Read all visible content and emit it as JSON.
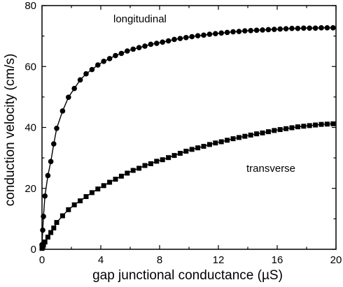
{
  "chart_data": {
    "type": "line",
    "title": "",
    "xlabel": "gap junctional conductance (µS)",
    "ylabel": "conduction velocity (cm/s)",
    "xlim": [
      0,
      20
    ],
    "ylim": [
      0,
      80
    ],
    "xticks": [
      "0",
      "4",
      "8",
      "12",
      "16",
      "20"
    ],
    "yticks": [
      "0",
      "20",
      "40",
      "60",
      "80"
    ],
    "grid": false,
    "legend": "none",
    "annotations": [
      {
        "text": "longitudinal",
        "series": 0
      },
      {
        "text": "transverse",
        "series": 1
      }
    ],
    "series": [
      {
        "name": "longitudinal",
        "marker": "circle",
        "x": [
          0,
          0.05,
          0.1,
          0.2,
          0.4,
          0.6,
          0.8,
          1.0,
          1.4,
          1.8,
          2.2,
          2.6,
          3.0,
          3.4,
          3.8,
          4.2,
          4.6,
          5.0,
          5.4,
          5.8,
          6.2,
          6.6,
          7.0,
          7.4,
          7.8,
          8.2,
          8.6,
          9.0,
          9.4,
          9.8,
          10.2,
          10.6,
          11.0,
          11.4,
          11.8,
          12.2,
          12.6,
          13.0,
          13.4,
          13.8,
          14.2,
          14.6,
          15.0,
          15.4,
          15.8,
          16.2,
          16.6,
          17.0,
          17.4,
          17.8,
          18.2,
          18.6,
          19.0,
          19.4,
          19.8
        ],
        "y": [
          1.5,
          6.3,
          10.8,
          17.5,
          24.2,
          28.8,
          34.6,
          39.7,
          45.4,
          49.9,
          52.8,
          55.6,
          57.6,
          59.0,
          60.5,
          61.7,
          62.6,
          63.6,
          64.3,
          65.1,
          65.7,
          66.2,
          66.7,
          67.3,
          67.6,
          68.0,
          68.4,
          68.9,
          69.2,
          69.5,
          69.8,
          70.1,
          70.3,
          70.6,
          70.8,
          71.0,
          71.2,
          71.4,
          71.5,
          71.7,
          71.8,
          71.9,
          72.0,
          72.1,
          72.2,
          72.3,
          72.4,
          72.5,
          72.5,
          72.6,
          72.6,
          72.6,
          72.7,
          72.7,
          72.7
        ]
      },
      {
        "name": "transverse",
        "marker": "square",
        "x": [
          0,
          0.05,
          0.1,
          0.2,
          0.4,
          0.6,
          0.8,
          1.0,
          1.4,
          1.8,
          2.2,
          2.6,
          3.0,
          3.4,
          3.8,
          4.2,
          4.6,
          5.0,
          5.4,
          5.8,
          6.2,
          6.6,
          7.0,
          7.4,
          7.8,
          8.2,
          8.6,
          9.0,
          9.4,
          9.8,
          10.2,
          10.6,
          11.0,
          11.4,
          11.8,
          12.2,
          12.6,
          13.0,
          13.4,
          13.8,
          14.2,
          14.6,
          15.0,
          15.4,
          15.8,
          16.2,
          16.6,
          17.0,
          17.4,
          17.8,
          18.2,
          18.6,
          19.0,
          19.4,
          19.8
        ],
        "y": [
          0.3,
          0.8,
          1.4,
          2.4,
          4.0,
          5.5,
          7.0,
          8.8,
          11.0,
          13.0,
          14.6,
          15.9,
          17.3,
          18.6,
          19.8,
          20.9,
          22.0,
          23.0,
          24.0,
          25.0,
          25.9,
          26.6,
          27.5,
          28.1,
          28.9,
          29.4,
          30.1,
          30.8,
          31.5,
          32.2,
          32.8,
          33.3,
          33.8,
          34.4,
          34.9,
          35.3,
          35.8,
          36.3,
          36.7,
          37.1,
          37.5,
          37.9,
          38.2,
          38.6,
          39.0,
          39.3,
          39.6,
          39.9,
          40.2,
          40.4,
          40.6,
          40.8,
          41.0,
          41.1,
          41.2
        ]
      }
    ]
  }
}
